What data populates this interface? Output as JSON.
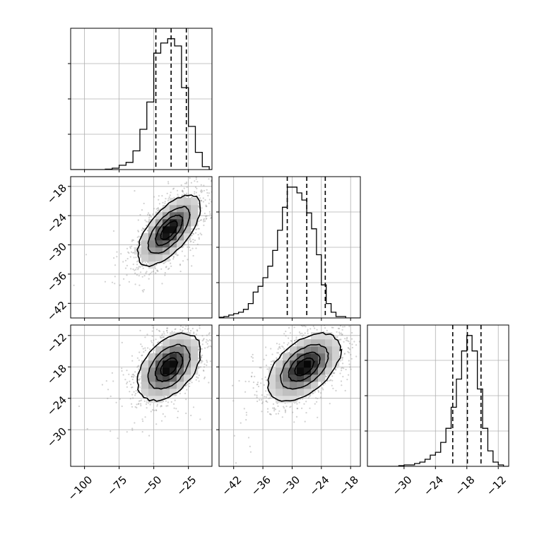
{
  "chart_data": {
    "type": "corner",
    "title": "",
    "grid": true,
    "parameters": [
      {
        "index": 0,
        "range": [
          -110,
          -8
        ],
        "ticks": [
          -100,
          -75,
          -50,
          -25
        ],
        "tick_labels": [
          "−100",
          "−75",
          "−50",
          "−25"
        ],
        "quantiles": [
          -48.5,
          -37.5,
          -26.5
        ],
        "hist_edges": [
          -110,
          -105,
          -100,
          -95,
          -90,
          -85,
          -80,
          -75,
          -70,
          -65,
          -60,
          -55,
          -50,
          -45,
          -40,
          -35,
          -30,
          -25,
          -20,
          -15,
          -10,
          -5
        ],
        "hist_counts": [
          0,
          0,
          0,
          0,
          0,
          0.003,
          0.01,
          0.03,
          0.05,
          0.13,
          0.28,
          0.47,
          0.81,
          0.88,
          0.91,
          0.86,
          0.57,
          0.3,
          0.12,
          0.02,
          0
        ]
      },
      {
        "index": 1,
        "range": [
          -45,
          -16
        ],
        "ticks": [
          -42,
          -36,
          -30,
          -24,
          -18
        ],
        "tick_labels": [
          "−42",
          "−36",
          "−30",
          "−24",
          "−18"
        ],
        "quantiles": [
          -31,
          -27,
          -23.2
        ],
        "hist_edges": [
          -45,
          -44,
          -43,
          -42,
          -41,
          -40,
          -39,
          -38,
          -37,
          -36,
          -35,
          -34,
          -33,
          -32,
          -31,
          -30,
          -29,
          -28,
          -27,
          -26,
          -25,
          -24,
          -23,
          -22,
          -21,
          -20,
          -19,
          -18,
          -17,
          -16
        ],
        "hist_counts": [
          0.005,
          0.01,
          0.02,
          0.03,
          0.04,
          0.06,
          0.1,
          0.18,
          0.22,
          0.28,
          0.36,
          0.47,
          0.61,
          0.77,
          0.91,
          0.91,
          0.87,
          0.82,
          0.73,
          0.62,
          0.44,
          0.23,
          0.1,
          0.04,
          0.01,
          0.01,
          0,
          0,
          0
        ]
      },
      {
        "index": 2,
        "range": [
          -37,
          -10
        ],
        "ticks": [
          -30,
          -24,
          -18,
          -12
        ],
        "tick_labels": [
          "−30",
          "−24",
          "−18",
          "−12"
        ],
        "quantiles": [
          -20.7,
          -17.9,
          -15.3
        ],
        "hist_edges": [
          -37,
          -36,
          -35,
          -34,
          -33,
          -32,
          -31,
          -30,
          -29,
          -28,
          -27,
          -26,
          -25,
          -24,
          -23,
          -22,
          -21,
          -20,
          -19,
          -18,
          -17,
          -16,
          -15,
          -14,
          -13,
          -12,
          -11,
          -10
        ],
        "hist_counts": [
          0,
          0,
          0,
          0,
          0,
          0,
          0.005,
          0.01,
          0.01,
          0.02,
          0.03,
          0.05,
          0.08,
          0.1,
          0.17,
          0.27,
          0.42,
          0.62,
          0.82,
          0.93,
          0.82,
          0.55,
          0.27,
          0.11,
          0.03,
          0.01,
          0.0
        ]
      }
    ],
    "pairs": [
      {
        "x_param": 0,
        "y_param": 1,
        "center": [
          -39,
          -27
        ],
        "sigma": [
          11,
          3.5
        ],
        "rho": 0.65,
        "y_ticks": [
          -42,
          -36,
          -30,
          -24,
          -18
        ],
        "y_tick_labels": [
          "−42",
          "−36",
          "−30",
          "−24",
          "−18"
        ]
      },
      {
        "x_param": 0,
        "y_param": 2,
        "center": [
          -39,
          -18
        ],
        "sigma": [
          11,
          3.1
        ],
        "rho": 0.45,
        "y_ticks": [
          -30,
          -24,
          -18,
          -12
        ],
        "y_tick_labels": [
          "−30",
          "−24",
          "−18",
          "−12"
        ]
      },
      {
        "x_param": 1,
        "y_param": 2,
        "center": [
          -27.5,
          -18
        ],
        "sigma": [
          3.6,
          3.1
        ],
        "rho": 0.5,
        "y_ticks": [],
        "y_tick_labels": []
      }
    ]
  }
}
